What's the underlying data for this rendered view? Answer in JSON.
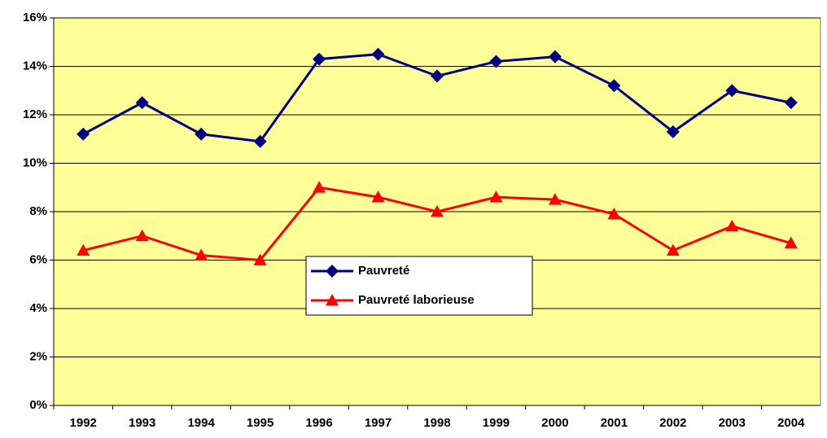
{
  "chart_data": {
    "type": "line",
    "categories": [
      "1992",
      "1993",
      "1994",
      "1995",
      "1996",
      "1997",
      "1998",
      "1999",
      "2000",
      "2001",
      "2002",
      "2003",
      "2004"
    ],
    "series": [
      {
        "name": "Pauvreté",
        "color": "#000080",
        "marker": "diamond",
        "values": [
          11.2,
          12.5,
          11.2,
          10.9,
          14.3,
          14.5,
          13.6,
          14.2,
          14.4,
          13.2,
          11.3,
          13.0,
          12.5
        ]
      },
      {
        "name": "Pauvreté laborieuse",
        "color": "#ff0000",
        "marker": "triangle",
        "values": [
          6.4,
          7.0,
          6.2,
          6.0,
          9.0,
          8.6,
          8.0,
          8.6,
          8.5,
          7.9,
          6.4,
          7.4,
          6.7
        ]
      }
    ],
    "ylim": [
      0,
      16
    ],
    "yticks": [
      {
        "value": 0,
        "label": "0%"
      },
      {
        "value": 2,
        "label": "2%"
      },
      {
        "value": 4,
        "label": "4%"
      },
      {
        "value": 6,
        "label": "6%"
      },
      {
        "value": 8,
        "label": "8%"
      },
      {
        "value": 10,
        "label": "10%"
      },
      {
        "value": 12,
        "label": "12%"
      },
      {
        "value": 14,
        "label": "14%"
      },
      {
        "value": 16,
        "label": "16%"
      }
    ],
    "grid": true,
    "plot_background": "#ffff99"
  }
}
